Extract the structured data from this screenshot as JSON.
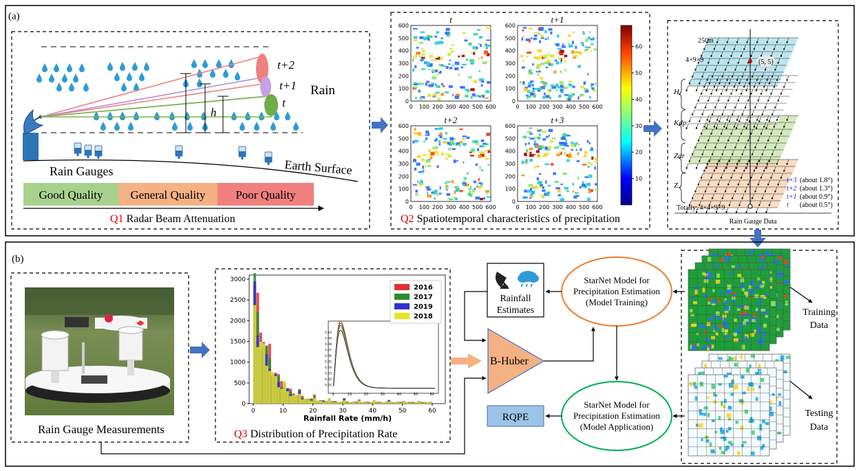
{
  "panel_a": {
    "label": "(a)",
    "q1": {
      "time_labels": [
        "t+2",
        "t+1",
        "t"
      ],
      "height_label": "h",
      "rain_label": "Rain",
      "gauges_label": "Rain Gauges",
      "earth_label": "Earth Surface",
      "quality": [
        "Good Quality",
        "General Quality",
        "Poor Quality"
      ],
      "caption_q": "Q1",
      "caption_text": " Radar Beam Attenuation"
    },
    "q2": {
      "panel_titles": [
        "t",
        "t+1",
        "t+2",
        "t+3"
      ],
      "axis_ticks": [
        "0",
        "100",
        "200",
        "300",
        "400",
        "500",
        "600"
      ],
      "colorbar_ticks": [
        "60",
        "50",
        "40",
        "30",
        "20",
        "10"
      ],
      "caption_q": "Q2",
      "caption_text": " Spatiotemporal characteristics of precipitation"
    },
    "q3_cube": {
      "grid_label": "250m",
      "size_label": "4×9×9",
      "point_label": "(5, 5)",
      "layers": [
        "H",
        "Kdp",
        "Zdr",
        "Z"
      ],
      "times": [
        {
          "t": "t+3",
          "angle": "(about 1.8°)"
        },
        {
          "t": "t+2",
          "angle": "(about 1.3°)"
        },
        {
          "t": "t+1",
          "angle": "(about 0.9°)"
        },
        {
          "t": "t",
          "angle": "(about 0.5°)"
        }
      ],
      "totally": "Totally: 4×4×9×9",
      "gauge_data": "Rain Gauge Data"
    }
  },
  "panel_b": {
    "label": "(b)",
    "photo_caption": "Rain Gauge Measurements",
    "hist": {
      "legend": [
        "2016",
        "2017",
        "2019",
        "2018"
      ],
      "y_ticks": [
        "3000",
        "2500",
        "2000",
        "1500",
        "1000",
        "500",
        "0"
      ],
      "x_ticks": [
        "0",
        "10",
        "20",
        "30",
        "40",
        "50",
        "60"
      ],
      "xlabel": "Rainfall Rate (mm/h)",
      "inset_y_ticks": [
        "0.10",
        "0.09",
        "0.08",
        "0.07",
        "0.06",
        "0.05",
        "0.04",
        "0.03",
        "0.02",
        "0.01"
      ],
      "inset_x_ticks": [
        "0",
        "10",
        "20",
        "30",
        "40",
        "50",
        "60"
      ],
      "caption_q": "Q3",
      "caption_text": " Distribution of Precipitation Rate"
    },
    "rainfall_estimates": [
      "Rainfall",
      "Estimates"
    ],
    "bhuber": "B-Huber",
    "training_model": [
      "StarNet Model for",
      "Precipitation Estimation",
      "(Model Training)"
    ],
    "application_model": [
      "StarNet Model for",
      "Precipitation Estimation",
      "(Model Application)"
    ],
    "rqpe": "RQPE",
    "training_data": [
      "Training",
      "Data"
    ],
    "testing_data": [
      "Testing",
      "Data"
    ]
  },
  "colors": {
    "good": "#a9d18e",
    "general": "#f4b183",
    "poor": "#f08080",
    "bhuber": "#f4b183",
    "training_oval": "#ed7d31",
    "application_oval": "#00b050",
    "rqpe": "#9dc3e6",
    "arrow_blue": "#4472c4",
    "red_q": "#e00000",
    "h2016": "#e03030",
    "h2017": "#2e8b2e",
    "h2019": "#3333cc",
    "h2018": "#e6e61e"
  }
}
